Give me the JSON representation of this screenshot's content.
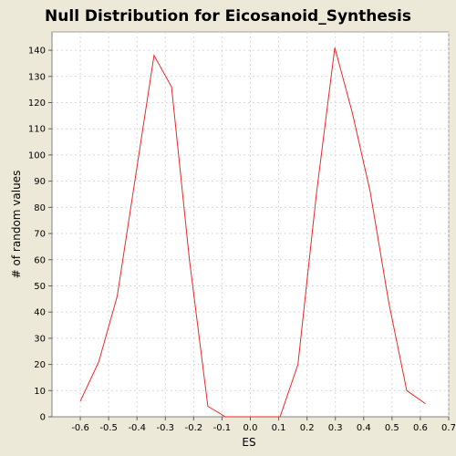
{
  "chart_data": {
    "type": "line",
    "title": "Null Distribution for Eicosanoid_Synthesis",
    "xlabel": "ES",
    "ylabel": "# of random values",
    "xlim": [
      -0.7,
      0.7
    ],
    "ylim": [
      0,
      147
    ],
    "x_ticks": [
      "-0.6",
      "-0.5",
      "-0.4",
      "-0.3",
      "-0.2",
      "-0.1",
      "0.0",
      "0.1",
      "0.2",
      "0.3",
      "0.4",
      "0.5",
      "0.6",
      "0.7"
    ],
    "y_ticks": [
      "0",
      "10",
      "20",
      "30",
      "40",
      "50",
      "60",
      "70",
      "80",
      "90",
      "100",
      "110",
      "120",
      "130",
      "140"
    ],
    "grid": true,
    "colors": {
      "line": "#e8292b",
      "plot_background": "#ffffff",
      "page_background": "#ece9d8",
      "grid": "#d9d9d9"
    },
    "series": [
      {
        "x": [
          -0.6,
          -0.535,
          -0.47,
          -0.405,
          -0.34,
          -0.278,
          -0.215,
          -0.15,
          -0.088,
          -0.025,
          0.04,
          0.105,
          0.168,
          0.233,
          0.298,
          0.36,
          0.423,
          0.488,
          0.552,
          0.618
        ],
        "values": [
          6,
          21,
          46,
          92,
          138,
          126,
          60,
          4,
          0,
          0,
          0,
          0,
          20,
          85,
          141,
          116,
          86,
          44,
          10,
          5
        ]
      }
    ]
  }
}
